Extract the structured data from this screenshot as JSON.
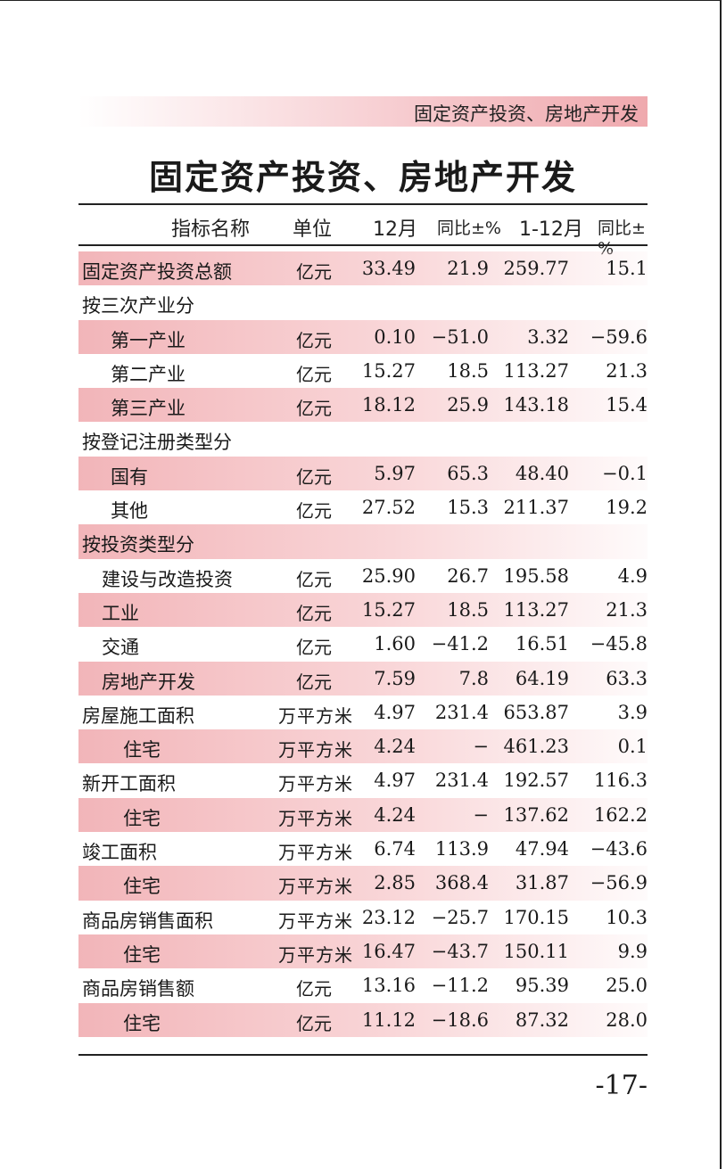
{
  "section_header": "固定资产投资、房地产开发",
  "title": "固定资产投资、房地产开发",
  "columns": [
    "指标名称",
    "单位",
    "12月",
    "同比±%",
    "1-12月",
    "同比±%"
  ],
  "rows": [
    {
      "name": "固定资产投资总额",
      "unit": "亿元",
      "dec": "33.49",
      "yoy1": "21.9",
      "ytd": "259.77",
      "yoy2": "15.1"
    },
    {
      "name": "按三次产业分",
      "unit": "",
      "dec": "",
      "yoy1": "",
      "ytd": "",
      "yoy2": ""
    },
    {
      "name": "第一产业",
      "unit": "亿元",
      "dec": "0.10",
      "yoy1": "−51.0",
      "ytd": "3.32",
      "yoy2": "−59.6"
    },
    {
      "name": "第二产业",
      "unit": "亿元",
      "dec": "15.27",
      "yoy1": "18.5",
      "ytd": "113.27",
      "yoy2": "21.3"
    },
    {
      "name": "第三产业",
      "unit": "亿元",
      "dec": "18.12",
      "yoy1": "25.9",
      "ytd": "143.18",
      "yoy2": "15.4"
    },
    {
      "name": "按登记注册类型分",
      "unit": "",
      "dec": "",
      "yoy1": "",
      "ytd": "",
      "yoy2": ""
    },
    {
      "name": "国有",
      "unit": "亿元",
      "dec": "5.97",
      "yoy1": "65.3",
      "ytd": "48.40",
      "yoy2": "−0.1"
    },
    {
      "name": "其他",
      "unit": "亿元",
      "dec": "27.52",
      "yoy1": "15.3",
      "ytd": "211.37",
      "yoy2": "19.2"
    },
    {
      "name": "按投资类型分",
      "unit": "",
      "dec": "",
      "yoy1": "",
      "ytd": "",
      "yoy2": ""
    },
    {
      "name": "建设与改造投资",
      "unit": "亿元",
      "dec": "25.90",
      "yoy1": "26.7",
      "ytd": "195.58",
      "yoy2": "4.9"
    },
    {
      "name": "工业",
      "unit": "亿元",
      "dec": "15.27",
      "yoy1": "18.5",
      "ytd": "113.27",
      "yoy2": "21.3"
    },
    {
      "name": "交通",
      "unit": "亿元",
      "dec": "1.60",
      "yoy1": "−41.2",
      "ytd": "16.51",
      "yoy2": "−45.8"
    },
    {
      "name": "房地产开发",
      "unit": "亿元",
      "dec": "7.59",
      "yoy1": "7.8",
      "ytd": "64.19",
      "yoy2": "63.3"
    },
    {
      "name": "房屋施工面积",
      "unit": "万平方米",
      "dec": "4.97",
      "yoy1": "231.4",
      "ytd": "653.87",
      "yoy2": "3.9"
    },
    {
      "name": "住宅",
      "unit": "万平方米",
      "dec": "4.24",
      "yoy1": "−",
      "ytd": "461.23",
      "yoy2": "0.1"
    },
    {
      "name": "新开工面积",
      "unit": "万平方米",
      "dec": "4.97",
      "yoy1": "231.4",
      "ytd": "192.57",
      "yoy2": "116.3"
    },
    {
      "name": "住宅",
      "unit": "万平方米",
      "dec": "4.24",
      "yoy1": "−",
      "ytd": "137.62",
      "yoy2": "162.2"
    },
    {
      "name": "竣工面积",
      "unit": "万平方米",
      "dec": "6.74",
      "yoy1": "113.9",
      "ytd": "47.94",
      "yoy2": "−43.6"
    },
    {
      "name": "住宅",
      "unit": "万平方米",
      "dec": "2.85",
      "yoy1": "368.4",
      "ytd": "31.87",
      "yoy2": "−56.9"
    },
    {
      "name": "商品房销售面积",
      "unit": "万平方米",
      "dec": "23.12",
      "yoy1": "−25.7",
      "ytd": "170.15",
      "yoy2": "10.3"
    },
    {
      "name": "住宅",
      "unit": "万平方米",
      "dec": "16.47",
      "yoy1": "−43.7",
      "ytd": "150.11",
      "yoy2": "9.9"
    },
    {
      "name": "商品房销售额",
      "unit": "亿元",
      "dec": "13.16",
      "yoy1": "−11.2",
      "ytd": "95.39",
      "yoy2": "25.0"
    },
    {
      "name": "住宅",
      "unit": "亿元",
      "dec": "11.12",
      "yoy1": "−18.6",
      "ytd": "87.32",
      "yoy2": "28.0"
    }
  ],
  "page_number": "-17-"
}
